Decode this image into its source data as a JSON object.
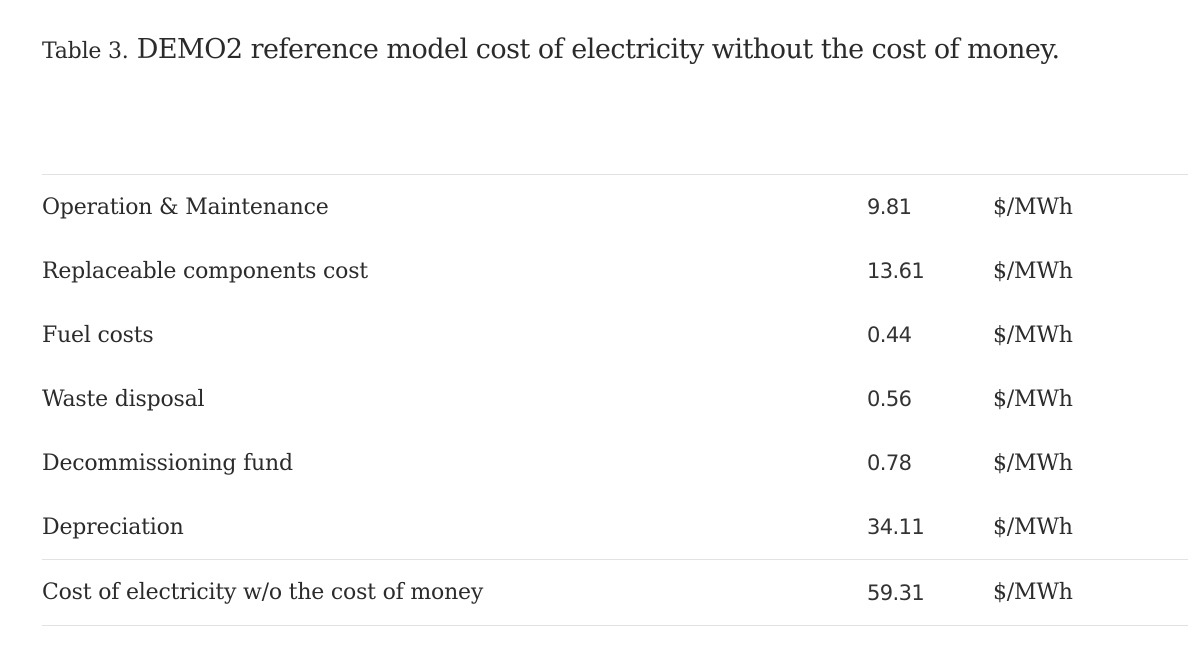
{
  "caption": {
    "label": "Table 3.",
    "text": "DEMO2 reference model cost of electricity without the cost of money."
  },
  "rows": [
    {
      "name": "Operation & Maintenance",
      "value": "9.81",
      "unit": "$/MWh"
    },
    {
      "name": "Replaceable components cost",
      "value": "13.61",
      "unit": "$/MWh"
    },
    {
      "name": "Fuel costs",
      "value": "0.44",
      "unit": "$/MWh"
    },
    {
      "name": "Waste disposal",
      "value": "0.56",
      "unit": "$/MWh"
    },
    {
      "name": "Decommissioning fund",
      "value": "0.78",
      "unit": "$/MWh"
    },
    {
      "name": "Depreciation",
      "value": "34.11",
      "unit": "$/MWh"
    }
  ],
  "total": {
    "name": "Cost of electricity w/o the cost of money",
    "value": "59.31",
    "unit": "$/MWh"
  }
}
